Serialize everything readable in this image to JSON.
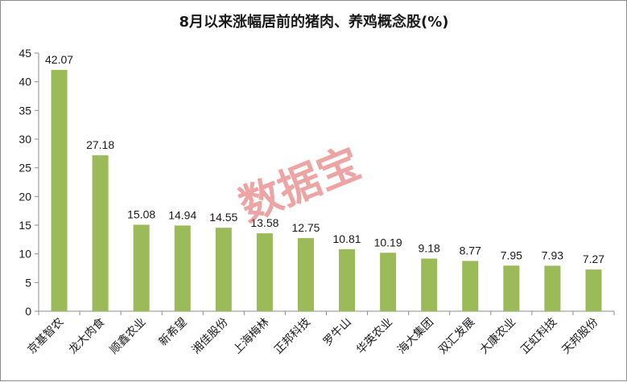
{
  "chart_data": {
    "type": "bar",
    "title": "8月以来涨幅居前的猪肉、养鸡概念股(%)",
    "categories": [
      "京基智农",
      "龙大肉食",
      "顺鑫农业",
      "新希望",
      "湘佳股份",
      "上海梅林",
      "正邦科技",
      "罗牛山",
      "华英农业",
      "海大集团",
      "双汇发展",
      "大康农业",
      "正虹科技",
      "天邦股份"
    ],
    "values": [
      42.07,
      27.18,
      15.08,
      14.94,
      14.55,
      13.58,
      12.75,
      10.81,
      10.19,
      9.18,
      8.77,
      7.95,
      7.93,
      7.27
    ],
    "value_labels": [
      "42.07",
      "27.18",
      "15.08",
      "14.94",
      "14.55",
      "13.58",
      "12.75",
      "10.81",
      "10.19",
      "9.18",
      "8.77",
      "7.95",
      "7.93",
      "7.27"
    ],
    "y_ticks": [
      "0",
      "5",
      "10",
      "15",
      "20",
      "25",
      "30",
      "35",
      "40",
      "45"
    ],
    "ylim": [
      0,
      45
    ],
    "xlabel": "",
    "ylabel": "",
    "grid": false,
    "bar_color": "#9bbb59",
    "watermark": "数据宝"
  }
}
